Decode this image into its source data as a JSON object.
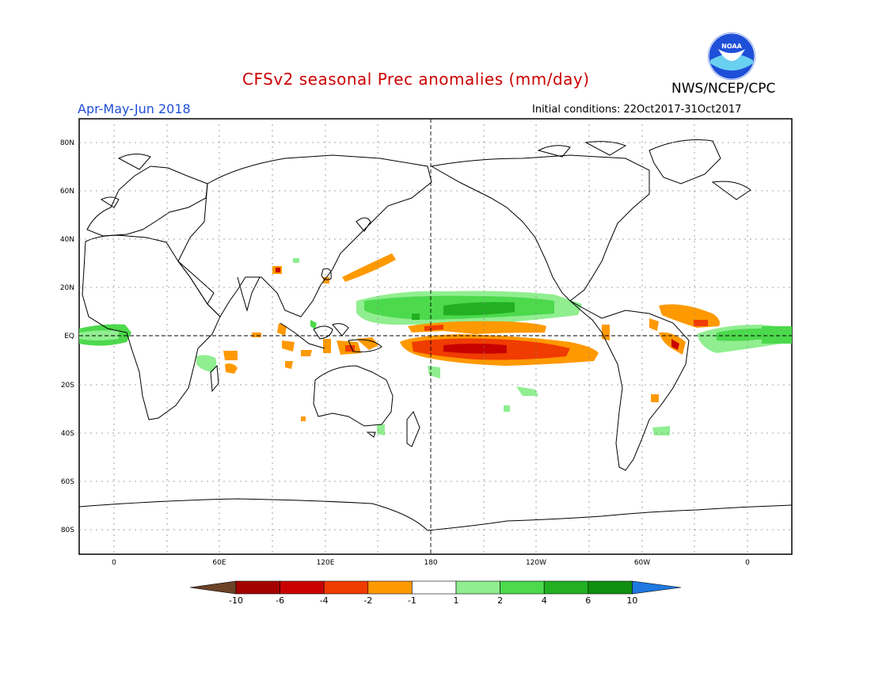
{
  "header": {
    "title": "CFSv2 seasonal Prec anomalies (mm/day)",
    "period": "Apr-May-Jun 2018",
    "initial_conditions": "Initial conditions: 22Oct2017-31Oct2017",
    "organization": "NWS/NCEP/CPC",
    "logo_text": "NOAA"
  },
  "colors": {
    "title": "#cc0000",
    "period": "#1f4fd8",
    "land_outline": "#000000",
    "grid": "#888888"
  },
  "axes": {
    "lat_labels": [
      "80N",
      "60N",
      "40N",
      "20N",
      "EQ",
      "20S",
      "40S",
      "60S",
      "80S"
    ],
    "lon_labels": [
      "0",
      "60E",
      "120E",
      "180",
      "120W",
      "60W",
      "0"
    ]
  },
  "colorbar": {
    "labels": [
      "-10",
      "-6",
      "-4",
      "-2",
      "-1",
      "1",
      "2",
      "4",
      "6",
      "10"
    ],
    "colors": [
      "#6b4226",
      "#a50000",
      "#c80000",
      "#f03c00",
      "#ff9900",
      "#ffffff",
      "#90ee90",
      "#4cd94c",
      "#22b022",
      "#108e10",
      "#1e78e0"
    ]
  }
}
